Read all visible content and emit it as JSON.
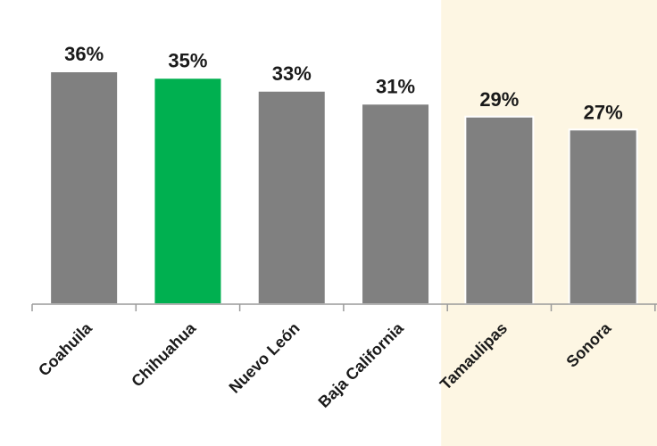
{
  "chart_data": {
    "type": "bar",
    "categories": [
      "Coahuila",
      "Chihuahua",
      "Nuevo León",
      "Baja California",
      "Tamaulipas",
      "Sonora"
    ],
    "values": [
      36,
      35,
      33,
      31,
      29,
      27
    ],
    "value_labels": [
      "36%",
      "35%",
      "33%",
      "31%",
      "29%",
      "27%"
    ],
    "unit": "%",
    "highlighted_category": "Chihuahua",
    "shaded_region_categories": [
      "Tamaulipas",
      "Sonora"
    ],
    "title": "",
    "xlabel": "",
    "ylabel": "",
    "ylim": [
      0,
      40
    ],
    "grid": false,
    "legend": "none",
    "tick_label_rotation": "-45deg"
  },
  "colors": {
    "bar": "#808080",
    "bar_highlight": "#00b050",
    "shaded_region": "#fdf6e3",
    "axis": "#9a9a9a",
    "text": "#1a1a1a"
  }
}
